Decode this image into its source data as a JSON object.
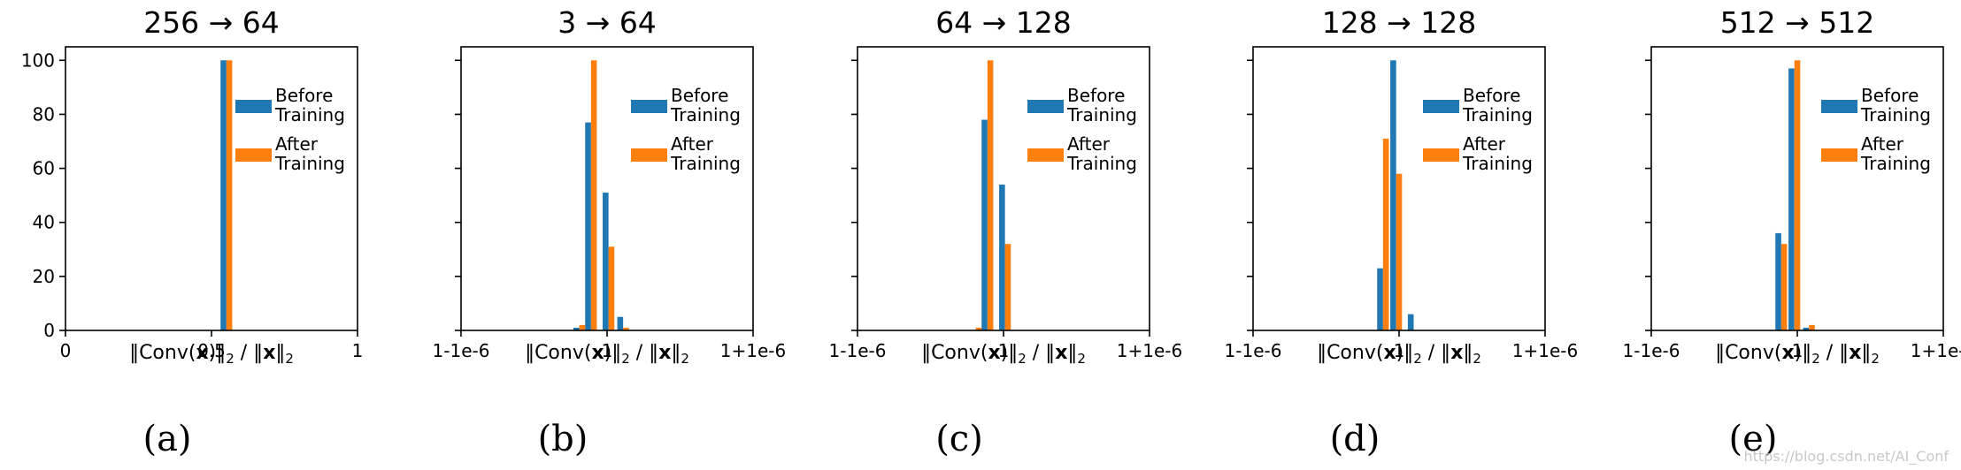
{
  "figure": {
    "watermark": "https://blog.csdn.net/AI_Conf",
    "xlabel_pre": "‖Conv(",
    "xlabel_x": "x",
    "xlabel_mid": ")‖",
    "xlabel_sep": " / ‖",
    "xlabel_x2": "x",
    "xlabel_end": "‖",
    "xlabel_sub": "2"
  },
  "colors": {
    "before": "#1f77b4",
    "after": "#ff7f0e",
    "axis": "#000000"
  },
  "chart_data": [
    {
      "type": "bar",
      "title": "256 → 64",
      "caption": "(a)",
      "xlim": [
        0,
        1
      ],
      "ylim": [
        0,
        105
      ],
      "xticks": [
        {
          "v": 0,
          "label": "0"
        },
        {
          "v": 0.5,
          "label": "0.5"
        },
        {
          "v": 1,
          "label": "1"
        }
      ],
      "yticks": [
        0,
        20,
        40,
        60,
        80,
        100
      ],
      "show_ytick_labels": true,
      "series": [
        {
          "name": "Before Training",
          "bars": [
            {
              "x": 0.531,
              "w": 0.02,
              "value": 100
            }
          ]
        },
        {
          "name": "After Training",
          "bars": [
            {
              "x": 0.551,
              "w": 0.02,
              "value": 100
            }
          ]
        }
      ],
      "legend": [
        "Before\nTraining",
        "After\nTraining"
      ]
    },
    {
      "type": "bar",
      "title": "3 → 64",
      "caption": "(b)",
      "xlim": [
        -1.0,
        1.0
      ],
      "ylim": [
        0,
        105
      ],
      "xticks": [
        {
          "v": -1.0,
          "label": "1-1e-6"
        },
        {
          "v": 0,
          "label": "1"
        },
        {
          "v": 1.0,
          "label": "1+1e-6"
        }
      ],
      "yticks": [
        0,
        20,
        40,
        60,
        80,
        100
      ],
      "show_ytick_labels": false,
      "series": [
        {
          "name": "Before Training",
          "bars": [
            {
              "x": -0.23,
              "w": 0.04,
              "value": 1
            },
            {
              "x": -0.15,
              "w": 0.04,
              "value": 77
            },
            {
              "x": -0.03,
              "w": 0.04,
              "value": 51
            },
            {
              "x": 0.07,
              "w": 0.04,
              "value": 5
            }
          ]
        },
        {
          "name": "After Training",
          "bars": [
            {
              "x": -0.19,
              "w": 0.04,
              "value": 2
            },
            {
              "x": -0.11,
              "w": 0.04,
              "value": 100
            },
            {
              "x": 0.01,
              "w": 0.04,
              "value": 31
            },
            {
              "x": 0.11,
              "w": 0.04,
              "value": 1
            }
          ]
        }
      ],
      "legend": [
        "Before\nTraining",
        "After\nTraining"
      ]
    },
    {
      "type": "bar",
      "title": "64 → 128",
      "caption": "(c)",
      "xlim": [
        -1.0,
        1.0
      ],
      "ylim": [
        0,
        105
      ],
      "xticks": [
        {
          "v": -1.0,
          "label": "1-1e-6"
        },
        {
          "v": 0,
          "label": "1"
        },
        {
          "v": 1.0,
          "label": "1+1e-6"
        }
      ],
      "yticks": [
        0,
        20,
        40,
        60,
        80,
        100
      ],
      "show_ytick_labels": false,
      "series": [
        {
          "name": "Before Training",
          "bars": [
            {
              "x": -0.15,
              "w": 0.04,
              "value": 78
            },
            {
              "x": -0.03,
              "w": 0.04,
              "value": 54
            }
          ]
        },
        {
          "name": "After Training",
          "bars": [
            {
              "x": -0.19,
              "w": 0.04,
              "value": 1
            },
            {
              "x": -0.11,
              "w": 0.04,
              "value": 100
            },
            {
              "x": 0.01,
              "w": 0.04,
              "value": 32
            }
          ]
        }
      ],
      "legend": [
        "Before\nTraining",
        "After\nTraining"
      ]
    },
    {
      "type": "bar",
      "title": "128 → 128",
      "caption": "(d)",
      "xlim": [
        -1.0,
        1.0
      ],
      "ylim": [
        0,
        105
      ],
      "xticks": [
        {
          "v": -1.0,
          "label": "1-1e-6"
        },
        {
          "v": 0,
          "label": "1"
        },
        {
          "v": 1.0,
          "label": "1+1e-6"
        }
      ],
      "yticks": [
        0,
        20,
        40,
        60,
        80,
        100
      ],
      "show_ytick_labels": false,
      "series": [
        {
          "name": "Before Training",
          "bars": [
            {
              "x": -0.15,
              "w": 0.04,
              "value": 23
            },
            {
              "x": -0.06,
              "w": 0.04,
              "value": 100
            },
            {
              "x": 0.06,
              "w": 0.04,
              "value": 6
            }
          ]
        },
        {
          "name": "After Training",
          "bars": [
            {
              "x": -0.11,
              "w": 0.04,
              "value": 71
            },
            {
              "x": -0.02,
              "w": 0.04,
              "value": 58
            }
          ]
        }
      ],
      "legend": [
        "Before\nTraining",
        "After\nTraining"
      ]
    },
    {
      "type": "bar",
      "title": "512 → 512",
      "caption": "(e)",
      "xlim": [
        -1.0,
        1.0
      ],
      "ylim": [
        0,
        105
      ],
      "xticks": [
        {
          "v": -1.0,
          "label": "1-1e-6"
        },
        {
          "v": 0,
          "label": "1"
        },
        {
          "v": 1.0,
          "label": "1+1e-6"
        }
      ],
      "yticks": [
        0,
        20,
        40,
        60,
        80,
        100
      ],
      "show_ytick_labels": false,
      "series": [
        {
          "name": "Before Training",
          "bars": [
            {
              "x": -0.15,
              "w": 0.04,
              "value": 36
            },
            {
              "x": -0.06,
              "w": 0.04,
              "value": 97
            },
            {
              "x": 0.04,
              "w": 0.04,
              "value": 1
            }
          ]
        },
        {
          "name": "After Training",
          "bars": [
            {
              "x": -0.11,
              "w": 0.04,
              "value": 32
            },
            {
              "x": -0.02,
              "w": 0.04,
              "value": 100
            },
            {
              "x": 0.08,
              "w": 0.04,
              "value": 2
            }
          ]
        }
      ],
      "legend": [
        "Before\nTraining",
        "After\nTraining"
      ]
    }
  ]
}
